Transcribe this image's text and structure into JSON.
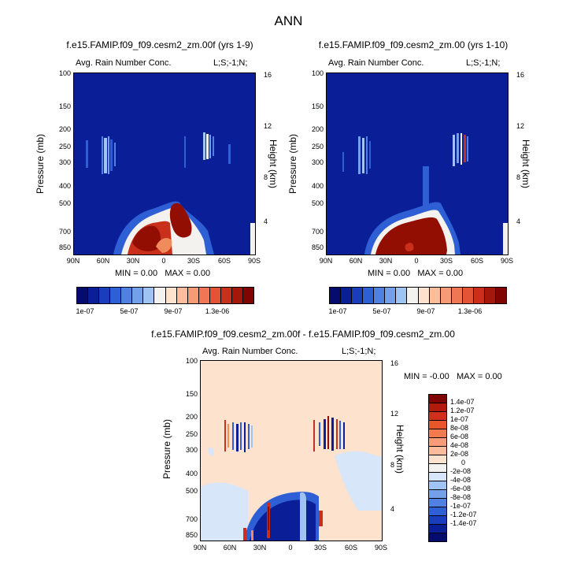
{
  "figure_title": "ANN",
  "colors": {
    "blue_bg": "#0a1f97",
    "blue_mid": "#2e5fd4",
    "blue_light": "#9fc3f2",
    "white": "#f4f2ef",
    "peach": "#fde2cd",
    "orange": "#f08c5c",
    "red": "#c8301c",
    "dark_red": "#920d02"
  },
  "panels": [
    {
      "title": "f.e15.FAMIP.f09_f09.cesm2_zm.00f (yrs 1-9)",
      "variable": "Avg. Rain Number Conc.",
      "region": "L;S;-1;N;",
      "stats": {
        "min_label": "MIN =",
        "min": "0.00",
        "max_label": "MAX =",
        "max": "0.00"
      }
    },
    {
      "title": "f.e15.FAMIP.f09_f09.cesm2_zm.00 (yrs 1-10)",
      "variable": "Avg. Rain Number Conc.",
      "region": "L;S;-1;N;",
      "stats": {
        "min_label": "MIN =",
        "min": "0.00",
        "max_label": "MAX =",
        "max": "0.00"
      }
    },
    {
      "title": "f.e15.FAMIP.f09_f09.cesm2_zm.00f - f.e15.FAMIP.f09_f09.cesm2_zm.00",
      "variable": "Avg. Rain Number Conc.",
      "region": "L;S;-1;N;",
      "stats": {
        "min_label": "MIN =",
        "min": "-0.00",
        "max_label": "MAX =",
        "max": "0.00"
      }
    }
  ],
  "axes": {
    "ylabel_left": "Pressure (mb)",
    "ylabel_right": "Height (km)",
    "pressure_ticks": [
      "100",
      "150",
      "200",
      "250",
      "300",
      "400",
      "500",
      "700",
      "850"
    ],
    "height_ticks": [
      "16",
      "12",
      "8",
      "4"
    ],
    "lat_ticks": [
      "90N",
      "60N",
      "30N",
      "0",
      "30S",
      "60S",
      "90S"
    ]
  },
  "colorbar_top": {
    "colors": [
      "#060c6e",
      "#0a1f97",
      "#1a3dbd",
      "#2e5fd4",
      "#4f80e2",
      "#749fe9",
      "#9fc3f2",
      "#f4f2ef",
      "#fde2cd",
      "#fbbd9b",
      "#f79b76",
      "#f07654",
      "#e35336",
      "#c8301c",
      "#a6170b",
      "#800502"
    ],
    "labels": [
      "1e-07",
      "5e-07",
      "9e-07",
      "1.3e-06"
    ]
  },
  "colorbar_diff": {
    "colors": [
      "#800502",
      "#b01b0d",
      "#d0301c",
      "#e8562c",
      "#f37a4e",
      "#f89b78",
      "#fbbc9e",
      "#fde2cd",
      "#f4f2ef",
      "#d7e6f8",
      "#9fc3f2",
      "#749fe9",
      "#4f80e2",
      "#2e5fd4",
      "#1a3dbd",
      "#0a1f97",
      "#060c6e"
    ],
    "labels": [
      "1.4e-07",
      "1.2e-07",
      "1e-07",
      "8e-08",
      "6e-08",
      "4e-08",
      "2e-08",
      "0",
      "-2e-08",
      "-4e-08",
      "-6e-08",
      "-8e-08",
      "-1e-07",
      "-1.2e-07",
      "-1.4e-07"
    ]
  },
  "chart_data": [
    {
      "type": "heatmap",
      "title": "f.e15.FAMIP.f09_f09.cesm2_zm.00f (yrs 1-9)",
      "subtitle": "Avg. Rain Number Conc.",
      "xlabel": "",
      "ylabel": "Pressure (mb)",
      "ylabel_right": "Height (km)",
      "x_ticks": [
        "90N",
        "60N",
        "30N",
        "0",
        "30S",
        "60S",
        "90S"
      ],
      "y_ticks": [
        100,
        150,
        200,
        250,
        300,
        400,
        500,
        700,
        850
      ],
      "ylim": [
        100,
        1000
      ],
      "stats": {
        "min": 0.0,
        "max": 0.0
      }
    },
    {
      "type": "heatmap",
      "title": "f.e15.FAMIP.f09_f09.cesm2_zm.00 (yrs 1-10)",
      "subtitle": "Avg. Rain Number Conc.",
      "ylabel": "Pressure (mb)",
      "ylabel_right": "Height (km)",
      "x_ticks": [
        "90N",
        "60N",
        "30N",
        "0",
        "30S",
        "60S",
        "90S"
      ],
      "y_ticks": [
        100,
        150,
        200,
        250,
        300,
        400,
        500,
        700,
        850
      ],
      "ylim": [
        100,
        1000
      ],
      "stats": {
        "min": 0.0,
        "max": 0.0
      }
    },
    {
      "type": "heatmap",
      "title": "f.e15.FAMIP.f09_f09.cesm2_zm.00f - f.e15.FAMIP.f09_f09.cesm2_zm.00",
      "subtitle": "Avg. Rain Number Conc.",
      "ylabel": "Pressure (mb)",
      "ylabel_right": "Height (km)",
      "x_ticks": [
        "90N",
        "60N",
        "30N",
        "0",
        "30S",
        "60S",
        "90S"
      ],
      "y_ticks": [
        100,
        150,
        200,
        250,
        300,
        400,
        500,
        700,
        850
      ],
      "ylim": [
        100,
        1000
      ],
      "stats": {
        "min": -0.0,
        "max": 0.0
      }
    }
  ]
}
